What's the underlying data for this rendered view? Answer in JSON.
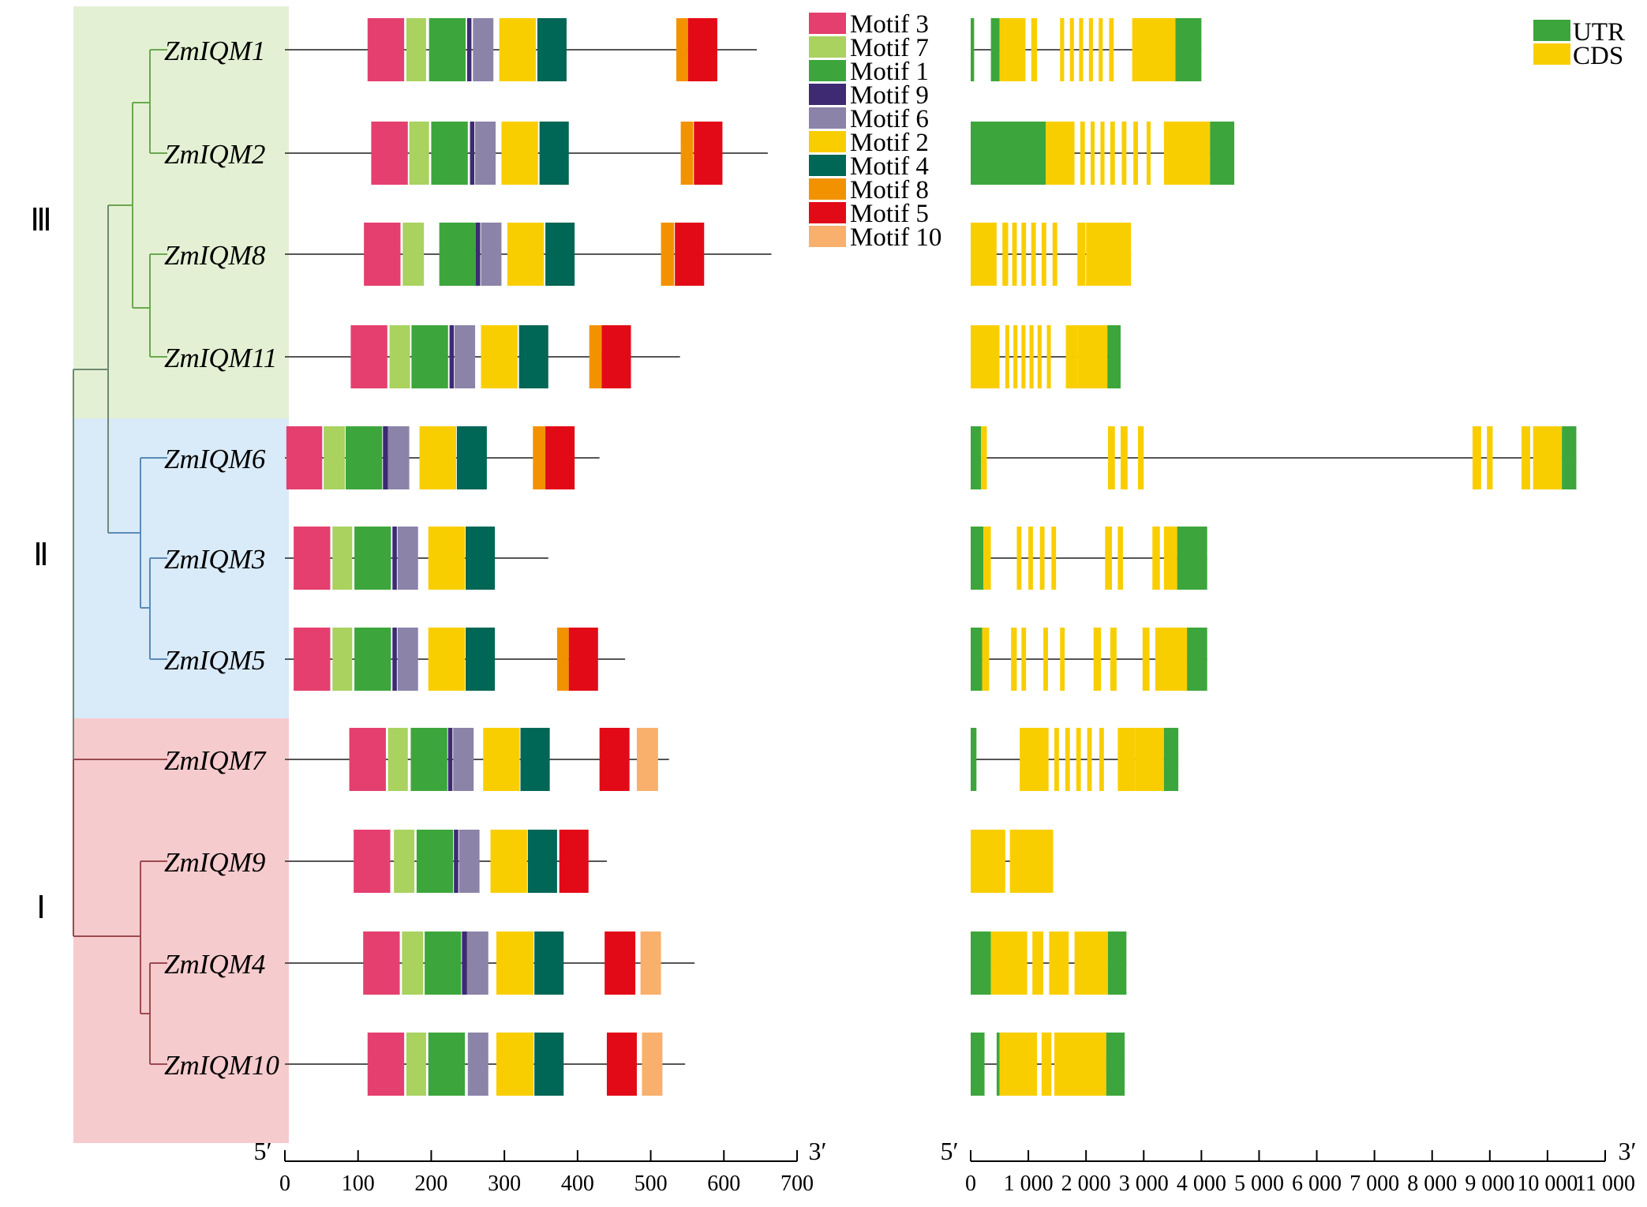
{
  "groups": [
    {
      "label": "Ⅲ",
      "color": "#e4f0d3",
      "genes": [
        "ZmIQM1",
        "ZmIQM2",
        "ZmIQM8",
        "ZmIQM11"
      ]
    },
    {
      "label": "Ⅱ",
      "color": "#d9eaf8",
      "genes": [
        "ZmIQM6",
        "ZmIQM3",
        "ZmIQM5"
      ]
    },
    {
      "label": "Ⅰ",
      "color": "#f6cbcd",
      "genes": [
        "ZmIQM7",
        "ZmIQM9",
        "ZmIQM4",
        "ZmIQM10"
      ]
    }
  ],
  "tree_colors": {
    "group3": "#6aa84f",
    "group2": "#5b8bb5",
    "group1": "#9b4a4f",
    "root": "#6e8a74"
  },
  "genes": [
    "ZmIQM1",
    "ZmIQM2",
    "ZmIQM8",
    "ZmIQM11",
    "ZmIQM6",
    "ZmIQM3",
    "ZmIQM5",
    "ZmIQM7",
    "ZmIQM9",
    "ZmIQM4",
    "ZmIQM10"
  ],
  "motif_legend": [
    {
      "name": "Motif 3",
      "color": "#e43f6f"
    },
    {
      "name": "Motif 7",
      "color": "#a9d25f"
    },
    {
      "name": "Motif 1",
      "color": "#3ca63c"
    },
    {
      "name": "Motif 9",
      "color": "#3d2a73"
    },
    {
      "name": "Motif 6",
      "color": "#8c83a8"
    },
    {
      "name": "Motif 2",
      "color": "#f9ce00"
    },
    {
      "name": "Motif 4",
      "color": "#006655"
    },
    {
      "name": "Motif 8",
      "color": "#f39200"
    },
    {
      "name": "Motif 5",
      "color": "#e30a17"
    },
    {
      "name": "Motif 10",
      "color": "#f8b06c"
    }
  ],
  "motif_axis": {
    "min": 0,
    "max": 700,
    "ticks": [
      "0",
      "100",
      "200",
      "300",
      "400",
      "500",
      "600",
      "700"
    ],
    "start_label": "5′",
    "end_label": "3′"
  },
  "motifs": [
    {
      "gene": "ZmIQM1",
      "length": 645,
      "blocks": [
        [
          "Motif 3",
          113,
          163
        ],
        [
          "Motif 7",
          166,
          193
        ],
        [
          "Motif 1",
          197,
          247
        ],
        [
          "Motif 9",
          249,
          255
        ],
        [
          "Motif 6",
          257,
          285
        ],
        [
          "Motif 2",
          293,
          343
        ],
        [
          "Motif 4",
          345,
          385
        ],
        [
          "Motif 8",
          535,
          551
        ],
        [
          "Motif 5",
          551,
          591
        ]
      ]
    },
    {
      "gene": "ZmIQM2",
      "length": 660,
      "blocks": [
        [
          "Motif 3",
          118,
          168
        ],
        [
          "Motif 7",
          170,
          197
        ],
        [
          "Motif 1",
          200,
          250
        ],
        [
          "Motif 9",
          253,
          259
        ],
        [
          "Motif 6",
          260,
          288
        ],
        [
          "Motif 2",
          296,
          346
        ],
        [
          "Motif 4",
          348,
          388
        ],
        [
          "Motif 8",
          541,
          558
        ],
        [
          "Motif 5",
          559,
          598
        ]
      ]
    },
    {
      "gene": "ZmIQM8",
      "length": 665,
      "blocks": [
        [
          "Motif 3",
          108,
          158
        ],
        [
          "Motif 7",
          161,
          190
        ],
        [
          "Motif 1",
          211,
          261
        ],
        [
          "Motif 9",
          261,
          267
        ],
        [
          "Motif 6",
          268,
          296
        ],
        [
          "Motif 2",
          304,
          354
        ],
        [
          "Motif 4",
          356,
          396
        ],
        [
          "Motif 8",
          514,
          532
        ],
        [
          "Motif 5",
          533,
          573
        ]
      ]
    },
    {
      "gene": "ZmIQM11",
      "length": 540,
      "blocks": [
        [
          "Motif 3",
          90,
          140
        ],
        [
          "Motif 7",
          143,
          171
        ],
        [
          "Motif 1",
          173,
          223
        ],
        [
          "Motif 9",
          225,
          231
        ],
        [
          "Motif 6",
          232,
          260
        ],
        [
          "Motif 2",
          268,
          318
        ],
        [
          "Motif 4",
          320,
          360
        ],
        [
          "Motif 8",
          416,
          433
        ],
        [
          "Motif 5",
          433,
          473
        ]
      ]
    },
    {
      "gene": "ZmIQM6",
      "length": 430,
      "blocks": [
        [
          "Motif 3",
          2,
          51
        ],
        [
          "Motif 7",
          53,
          82
        ],
        [
          "Motif 1",
          83,
          133
        ],
        [
          "Motif 9",
          134,
          141
        ],
        [
          "Motif 6",
          141,
          170
        ],
        [
          "Motif 2",
          184,
          234
        ],
        [
          "Motif 4",
          235,
          276
        ],
        [
          "Motif 8",
          339,
          356
        ],
        [
          "Motif 5",
          356,
          396
        ]
      ]
    },
    {
      "gene": "ZmIQM3",
      "length": 360,
      "blocks": [
        [
          "Motif 3",
          12,
          62
        ],
        [
          "Motif 7",
          65,
          92
        ],
        [
          "Motif 1",
          95,
          145
        ],
        [
          "Motif 9",
          147,
          153
        ],
        [
          "Motif 6",
          154,
          182
        ],
        [
          "Motif 2",
          196,
          246
        ],
        [
          "Motif 4",
          247,
          287
        ]
      ]
    },
    {
      "gene": "ZmIQM5",
      "length": 465,
      "blocks": [
        [
          "Motif 3",
          12,
          62
        ],
        [
          "Motif 7",
          65,
          92
        ],
        [
          "Motif 1",
          95,
          145
        ],
        [
          "Motif 9",
          147,
          153
        ],
        [
          "Motif 6",
          154,
          182
        ],
        [
          "Motif 2",
          196,
          246
        ],
        [
          "Motif 4",
          247,
          287
        ],
        [
          "Motif 8",
          372,
          388
        ],
        [
          "Motif 5",
          388,
          428
        ]
      ]
    },
    {
      "gene": "ZmIQM7",
      "length": 525,
      "blocks": [
        [
          "Motif 3",
          88,
          138
        ],
        [
          "Motif 7",
          141,
          168
        ],
        [
          "Motif 1",
          172,
          222
        ],
        [
          "Motif 9",
          223,
          229
        ],
        [
          "Motif 6",
          230,
          258
        ],
        [
          "Motif 2",
          271,
          321
        ],
        [
          "Motif 4",
          322,
          362
        ],
        [
          "Motif 5",
          430,
          471
        ],
        [
          "Motif 10",
          481,
          510
        ]
      ]
    },
    {
      "gene": "ZmIQM9",
      "length": 440,
      "blocks": [
        [
          "Motif 3",
          94,
          144
        ],
        [
          "Motif 7",
          149,
          177
        ],
        [
          "Motif 1",
          180,
          230
        ],
        [
          "Motif 9",
          231,
          237
        ],
        [
          "Motif 6",
          238,
          266
        ],
        [
          "Motif 2",
          281,
          331
        ],
        [
          "Motif 4",
          332,
          372
        ],
        [
          "Motif 5",
          375,
          415
        ]
      ]
    },
    {
      "gene": "ZmIQM4",
      "length": 560,
      "blocks": [
        [
          "Motif 3",
          107,
          157
        ],
        [
          "Motif 7",
          160,
          189
        ],
        [
          "Motif 1",
          191,
          241
        ],
        [
          "Motif 9",
          242,
          249
        ],
        [
          "Motif 6",
          249,
          278
        ],
        [
          "Motif 2",
          289,
          340
        ],
        [
          "Motif 4",
          341,
          381
        ],
        [
          "Motif 5",
          437,
          479
        ],
        [
          "Motif 10",
          486,
          514
        ]
      ]
    },
    {
      "gene": "ZmIQM10",
      "length": 547,
      "blocks": [
        [
          "Motif 3",
          113,
          163
        ],
        [
          "Motif 7",
          166,
          193
        ],
        [
          "Motif 1",
          196,
          246
        ],
        [
          "Motif 6",
          250,
          278
        ],
        [
          "Motif 2",
          289,
          340
        ],
        [
          "Motif 4",
          341,
          381
        ],
        [
          "Motif 5",
          440,
          481
        ],
        [
          "Motif 10",
          488,
          516
        ]
      ]
    }
  ],
  "structure_legend": [
    {
      "name": "UTR",
      "color": "#3ca63c"
    },
    {
      "name": "CDS",
      "color": "#f9ce00"
    }
  ],
  "structure_axis": {
    "min": 0,
    "max": 11000,
    "ticks": [
      "0",
      "1 000",
      "2 000",
      "3 000",
      "4 000",
      "5 000",
      "6 000",
      "7 000",
      "8 000",
      "9 000",
      "10 000",
      "11 000"
    ],
    "start_label": "5′",
    "end_label": "3′"
  },
  "structures": [
    {
      "gene": "ZmIQM1",
      "length": 4000,
      "blocks": [
        [
          "UTR",
          0,
          60
        ],
        [
          "UTR",
          350,
          500
        ],
        [
          "CDS",
          500,
          950
        ],
        [
          "CDS",
          1050,
          1150
        ],
        [
          "CDS",
          1550,
          1620
        ],
        [
          "CDS",
          1720,
          1790
        ],
        [
          "CDS",
          1880,
          1950
        ],
        [
          "CDS",
          2050,
          2120
        ],
        [
          "CDS",
          2220,
          2290
        ],
        [
          "CDS",
          2400,
          2480
        ],
        [
          "CDS",
          2800,
          3550
        ],
        [
          "UTR",
          3550,
          4000
        ]
      ]
    },
    {
      "gene": "ZmIQM2",
      "length": 4570,
      "blocks": [
        [
          "UTR",
          0,
          1300
        ],
        [
          "CDS",
          1300,
          1800
        ],
        [
          "CDS",
          1900,
          1980
        ],
        [
          "CDS",
          2080,
          2150
        ],
        [
          "CDS",
          2250,
          2320
        ],
        [
          "CDS",
          2420,
          2500
        ],
        [
          "CDS",
          2620,
          2700
        ],
        [
          "CDS",
          2820,
          2900
        ],
        [
          "CDS",
          3050,
          3120
        ],
        [
          "CDS",
          3350,
          4150
        ],
        [
          "UTR",
          4150,
          4570
        ]
      ]
    },
    {
      "gene": "ZmIQM8",
      "length": 2780,
      "blocks": [
        [
          "CDS",
          0,
          450
        ],
        [
          "CDS",
          550,
          650
        ],
        [
          "CDS",
          720,
          800
        ],
        [
          "CDS",
          880,
          960
        ],
        [
          "CDS",
          1050,
          1130
        ],
        [
          "CDS",
          1230,
          1310
        ],
        [
          "CDS",
          1420,
          1500
        ],
        [
          "CDS",
          1850,
          1990
        ],
        [
          "CDS",
          2000,
          2780
        ]
      ]
    },
    {
      "gene": "ZmIQM11",
      "length": 2600,
      "blocks": [
        [
          "CDS",
          0,
          500
        ],
        [
          "CDS",
          600,
          670
        ],
        [
          "CDS",
          740,
          810
        ],
        [
          "CDS",
          880,
          950
        ],
        [
          "CDS",
          1020,
          1090
        ],
        [
          "CDS",
          1160,
          1230
        ],
        [
          "CDS",
          1320,
          1390
        ],
        [
          "CDS",
          1650,
          1850
        ],
        [
          "CDS",
          1850,
          2370
        ],
        [
          "UTR",
          2370,
          2600
        ]
      ]
    },
    {
      "gene": "ZmIQM6",
      "length": 10500,
      "blocks": [
        [
          "UTR",
          0,
          180
        ],
        [
          "CDS",
          180,
          280
        ],
        [
          "CDS",
          2380,
          2500
        ],
        [
          "CDS",
          2600,
          2720
        ],
        [
          "CDS",
          2900,
          3000
        ],
        [
          "CDS",
          8700,
          8850
        ],
        [
          "CDS",
          8950,
          9050
        ],
        [
          "CDS",
          9550,
          9700
        ],
        [
          "CDS",
          9750,
          10250
        ],
        [
          "UTR",
          10250,
          10500
        ]
      ]
    },
    {
      "gene": "ZmIQM3",
      "length": 4100,
      "blocks": [
        [
          "UTR",
          0,
          220
        ],
        [
          "CDS",
          220,
          350
        ],
        [
          "CDS",
          800,
          880
        ],
        [
          "CDS",
          1000,
          1080
        ],
        [
          "CDS",
          1200,
          1280
        ],
        [
          "CDS",
          1400,
          1480
        ],
        [
          "CDS",
          2330,
          2450
        ],
        [
          "CDS",
          2550,
          2640
        ],
        [
          "CDS",
          3150,
          3280
        ],
        [
          "CDS",
          3350,
          3580
        ],
        [
          "UTR",
          3580,
          4100
        ]
      ]
    },
    {
      "gene": "ZmIQM5",
      "length": 4100,
      "blocks": [
        [
          "UTR",
          0,
          200
        ],
        [
          "CDS",
          200,
          320
        ],
        [
          "CDS",
          700,
          800
        ],
        [
          "CDS",
          880,
          960
        ],
        [
          "CDS",
          1260,
          1340
        ],
        [
          "CDS",
          1550,
          1630
        ],
        [
          "CDS",
          2130,
          2260
        ],
        [
          "CDS",
          2420,
          2530
        ],
        [
          "CDS",
          2980,
          3100
        ],
        [
          "CDS",
          3200,
          3750
        ],
        [
          "UTR",
          3750,
          4100
        ]
      ]
    },
    {
      "gene": "ZmIQM7",
      "length": 3600,
      "blocks": [
        [
          "UTR",
          0,
          100
        ],
        [
          "CDS",
          850,
          1350
        ],
        [
          "CDS",
          1450,
          1530
        ],
        [
          "CDS",
          1640,
          1720
        ],
        [
          "CDS",
          1830,
          1910
        ],
        [
          "CDS",
          2020,
          2100
        ],
        [
          "CDS",
          2230,
          2310
        ],
        [
          "CDS",
          2550,
          2850
        ],
        [
          "CDS",
          2850,
          3350
        ],
        [
          "UTR",
          3350,
          3600
        ]
      ]
    },
    {
      "gene": "ZmIQM9",
      "length": 1430,
      "blocks": [
        [
          "CDS",
          0,
          600
        ],
        [
          "CDS",
          680,
          1430
        ]
      ]
    },
    {
      "gene": "ZmIQM4",
      "length": 2700,
      "blocks": [
        [
          "UTR",
          0,
          350
        ],
        [
          "CDS",
          350,
          980
        ],
        [
          "CDS",
          1070,
          1260
        ],
        [
          "CDS",
          1360,
          1700
        ],
        [
          "CDS",
          1800,
          2380
        ],
        [
          "UTR",
          2380,
          2700
        ]
      ]
    },
    {
      "gene": "ZmIQM10",
      "length": 2670,
      "blocks": [
        [
          "UTR",
          0,
          240
        ],
        [
          "UTR",
          450,
          500
        ],
        [
          "CDS",
          500,
          1150
        ],
        [
          "CDS",
          1230,
          1400
        ],
        [
          "CDS",
          1450,
          2350
        ],
        [
          "UTR",
          2350,
          2670
        ]
      ]
    }
  ]
}
